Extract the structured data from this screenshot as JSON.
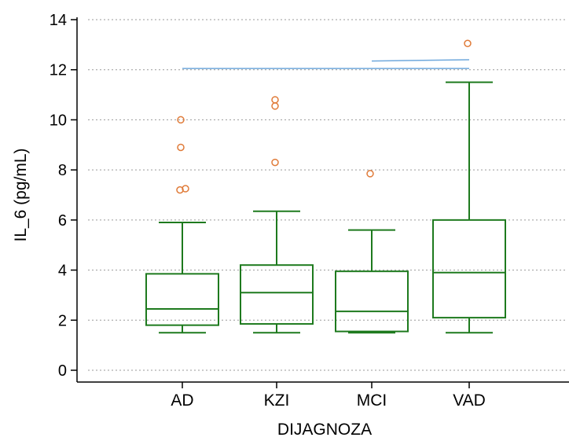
{
  "chart_data": {
    "type": "box",
    "title": "",
    "xlabel": "DIJAGNOZA",
    "ylabel": "IL_6 (pg/mL)",
    "ylim": [
      0,
      14
    ],
    "yticks": [
      "0",
      "2",
      "4",
      "6",
      "8",
      "10",
      "12",
      "14"
    ],
    "grid": true,
    "categories": [
      "AD",
      "KZI",
      "MCI",
      "VAD"
    ],
    "boxes": [
      {
        "category": "AD",
        "min": 1.5,
        "q1": 1.8,
        "median": 2.45,
        "q3": 3.85,
        "max": 5.9,
        "outliers": [
          7.2,
          7.25,
          8.9,
          10.0
        ]
      },
      {
        "category": "KZI",
        "min": 1.5,
        "q1": 1.85,
        "median": 3.1,
        "q3": 4.2,
        "max": 6.35,
        "outliers": [
          8.3,
          10.55,
          10.8
        ]
      },
      {
        "category": "MCI",
        "min": 1.5,
        "q1": 1.55,
        "median": 2.35,
        "q3": 3.95,
        "max": 5.6,
        "outliers": [
          7.85
        ]
      },
      {
        "category": "VAD",
        "min": 1.5,
        "q1": 2.1,
        "median": 3.9,
        "q3": 6.0,
        "max": 11.5,
        "outliers": [
          13.05
        ]
      }
    ],
    "reference_lines": [
      {
        "x_from": "AD",
        "x_to": "VAD",
        "y_from": 12.05,
        "y_to": 12.05
      },
      {
        "x_from": "MCI",
        "x_to": "VAD",
        "y_from": 12.35,
        "y_to": 12.4
      }
    ],
    "colors": {
      "box": "#1e7a1e",
      "outlier": "#e07b39",
      "reference": "#6fa8dc",
      "grid": "#9a9a9a",
      "axis": "#000000"
    }
  }
}
